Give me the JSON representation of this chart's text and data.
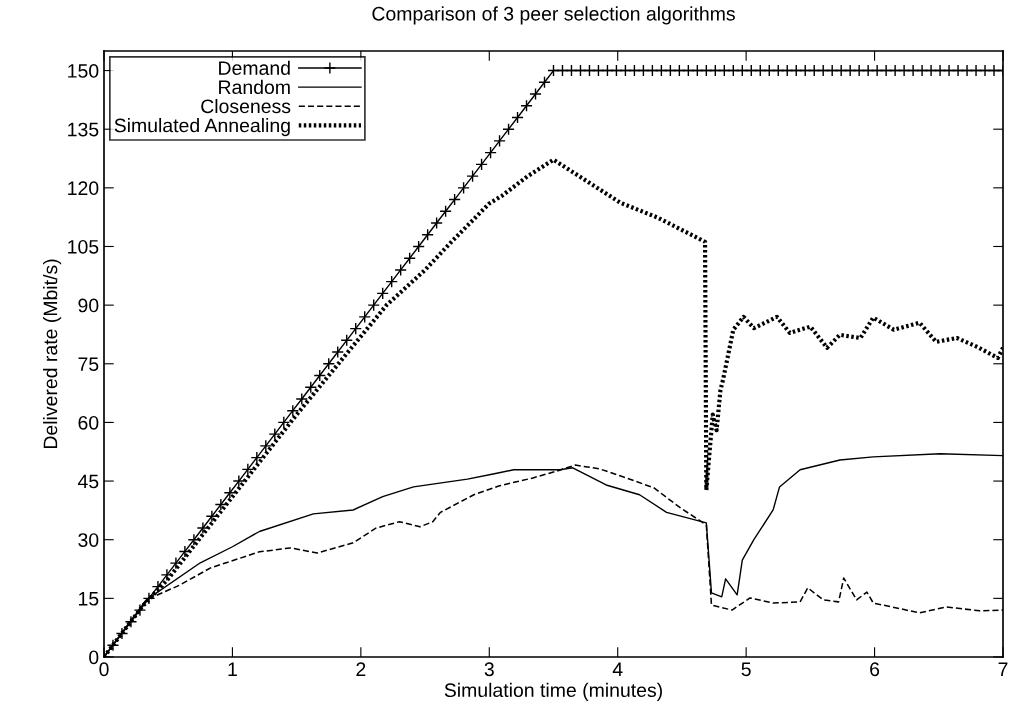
{
  "chart_data": {
    "type": "line",
    "title": "Comparison of 3 peer selection algorithms",
    "xlabel": "Simulation time (minutes)",
    "ylabel": "Delivered rate (Mbit/s)",
    "xlim": [
      0,
      7
    ],
    "ylim": [
      0,
      155
    ],
    "xticks": [
      0,
      1,
      2,
      3,
      4,
      5,
      6,
      7
    ],
    "yticks": [
      0,
      15,
      30,
      45,
      60,
      75,
      90,
      105,
      120,
      135,
      150
    ],
    "grid": false,
    "legend": "top left",
    "series": [
      {
        "name": "Demand",
        "color": "#000000",
        "marker": "cross",
        "line_style": "solid",
        "x": [
          0,
          0.07,
          0.14,
          0.21,
          0.28,
          0.35,
          0.42,
          0.49,
          0.56,
          0.63,
          0.7,
          0.77,
          0.84,
          0.91,
          0.98,
          1.05,
          1.12,
          1.19,
          1.26,
          1.33,
          1.4,
          1.47,
          1.54,
          1.61,
          1.68,
          1.75,
          1.82,
          1.89,
          1.96,
          2.03,
          2.1,
          2.17,
          2.24,
          2.31,
          2.38,
          2.45,
          2.52,
          2.59,
          2.66,
          2.73,
          2.8,
          2.87,
          2.94,
          3.01,
          3.08,
          3.15,
          3.22,
          3.29,
          3.36,
          3.43,
          3.5,
          3.57,
          3.64,
          3.71,
          3.78,
          3.85,
          3.92,
          3.99,
          4.06,
          4.13,
          4.2,
          4.27,
          4.34,
          4.41,
          4.48,
          4.55,
          4.62,
          4.69,
          4.76,
          4.83,
          4.9,
          4.97,
          5.04,
          5.11,
          5.18,
          5.25,
          5.32,
          5.39,
          5.46,
          5.53,
          5.6,
          5.67,
          5.74,
          5.81,
          5.88,
          5.95,
          6.02,
          6.09,
          6.16,
          6.23,
          6.3,
          6.37,
          6.44,
          6.51,
          6.58,
          6.65,
          6.72,
          6.79,
          6.86,
          6.93,
          7.0
        ],
        "values": [
          0,
          3,
          6,
          9,
          12,
          15,
          18,
          21,
          24,
          27,
          30,
          33,
          36,
          39,
          42,
          45,
          48,
          51,
          54,
          57,
          60,
          63,
          66,
          69,
          72,
          75,
          78,
          81,
          84,
          87,
          90,
          93,
          96,
          99,
          102,
          105,
          108,
          111,
          114,
          117,
          120,
          123,
          126,
          129,
          132,
          135,
          138,
          141,
          144,
          147,
          150,
          150,
          150,
          150,
          150,
          150,
          150,
          150,
          150,
          150,
          150,
          150,
          150,
          150,
          150,
          150,
          150,
          150,
          150,
          150,
          150,
          150,
          150,
          150,
          150,
          150,
          150,
          150,
          150,
          150,
          150,
          150,
          150,
          150,
          150,
          150,
          150,
          150,
          150,
          150,
          150,
          150,
          150,
          150,
          150,
          150,
          150,
          150,
          150,
          150,
          150
        ]
      },
      {
        "name": "Random",
        "color": "#000000",
        "marker": "none",
        "line_style": "solid",
        "x": [
          0,
          0.33,
          0.75,
          1.0,
          1.21,
          1.63,
          1.94,
          2.17,
          2.41,
          2.83,
          3.03,
          3.19,
          3.55,
          3.65,
          3.91,
          4.17,
          4.38,
          4.69,
          4.73,
          4.81,
          4.84,
          4.93,
          4.97,
          5.06,
          5.21,
          5.26,
          5.42,
          5.73,
          5.99,
          6.51,
          7.0
        ],
        "values": [
          0,
          14.6,
          24.1,
          28.2,
          32.1,
          36.6,
          37.6,
          41,
          43.5,
          45.5,
          46.8,
          47.9,
          47.9,
          48.4,
          44,
          41.5,
          37,
          34.3,
          16.4,
          15.4,
          20,
          15.9,
          24.8,
          30,
          37.6,
          43.5,
          47.9,
          50.4,
          51.2,
          52,
          51.5
        ]
      },
      {
        "name": "Closeness",
        "color": "#000000",
        "marker": "none",
        "line_style": "dashed",
        "x": [
          0,
          0.33,
          0.59,
          0.83,
          1.21,
          1.45,
          1.66,
          1.94,
          2.12,
          2.3,
          2.46,
          2.56,
          2.62,
          2.88,
          3.08,
          3.34,
          3.53,
          3.67,
          3.86,
          4.04,
          4.28,
          4.49,
          4.69,
          4.73,
          4.89,
          5.03,
          5.21,
          5.42,
          5.48,
          5.6,
          5.72,
          5.76,
          5.86,
          5.94,
          5.99,
          6.35,
          6.56,
          6.82,
          7.0
        ],
        "values": [
          0,
          14.6,
          18.4,
          22.8,
          26.9,
          27.9,
          26.6,
          29.2,
          33,
          34.6,
          33.3,
          34.6,
          37,
          41.5,
          43.8,
          45.8,
          47.6,
          49.1,
          48.1,
          46.1,
          43.3,
          38.1,
          33.8,
          13.3,
          12,
          15.1,
          13.8,
          14.1,
          17.7,
          14.6,
          14.1,
          20.2,
          14.6,
          16.6,
          13.8,
          11.3,
          12.8,
          11.8,
          12
        ]
      },
      {
        "name": "Simulated Annealing",
        "color": "#000000",
        "marker": "none",
        "line_style": "dotted",
        "x": [
          0,
          0.3,
          0.5,
          1.0,
          1.5,
          1.8,
          2.0,
          2.2,
          2.5,
          2.7,
          3.0,
          3.1,
          3.3,
          3.5,
          4.02,
          4.31,
          4.68,
          4.69,
          4.74,
          4.77,
          4.8,
          4.82,
          4.9,
          4.98,
          5.06,
          5.24,
          5.34,
          5.5,
          5.63,
          5.73,
          5.89,
          5.99,
          6.15,
          6.35,
          6.48,
          6.64,
          6.8,
          6.96,
          7.0
        ],
        "values": [
          0,
          13,
          20,
          41,
          62,
          74,
          82,
          90,
          99,
          106,
          116,
          118,
          123,
          127.2,
          116.2,
          112.4,
          106.2,
          42.7,
          62,
          58,
          68.3,
          70.9,
          83.7,
          87,
          84.1,
          87,
          82.9,
          84.5,
          79.1,
          82.4,
          81.6,
          86.8,
          83.7,
          85.5,
          80.6,
          81.6,
          79.3,
          76.5,
          79.1
        ]
      }
    ]
  }
}
